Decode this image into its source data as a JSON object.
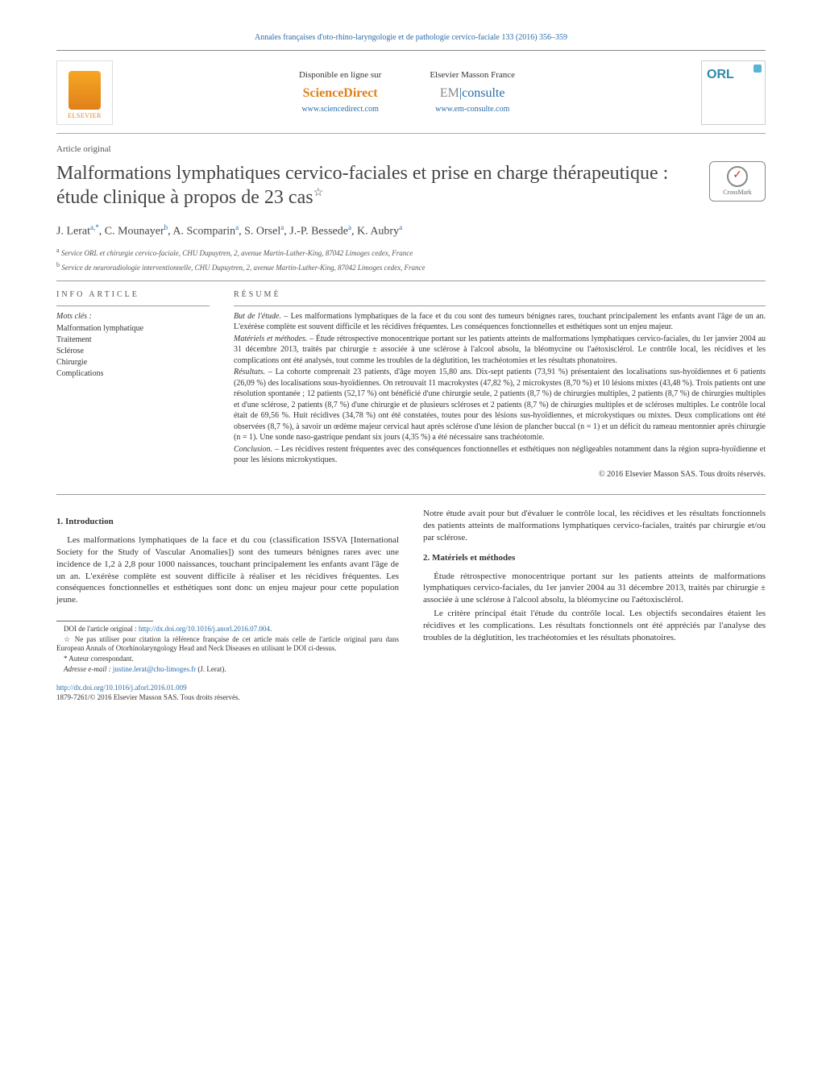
{
  "journal_header": "Annales françaises d'oto-rhino-laryngologie et de pathologie cervico-faciale 133 (2016) 356–359",
  "header": {
    "elsevier": "ELSEVIER",
    "dispo_label": "Disponible en ligne sur",
    "sciencedirect": "ScienceDirect",
    "sd_url": "www.sciencedirect.com",
    "masson_label": "Elsevier Masson France",
    "em_prefix": "EM",
    "em_suffix": "consulte",
    "em_url": "www.em-consulte.com",
    "journal_badge": "ORL"
  },
  "article_type": "Article original",
  "title": "Malformations lymphatiques cervico-faciales et prise en charge thérapeutique : étude clinique à propos de 23 cas",
  "title_star": "☆",
  "crossmark": "CrossMark",
  "authors_html": "J. Lerat<sup>a,*</sup>, C. Mounayer<sup>b</sup>, A. Scomparin<sup>a</sup>, S. Orsel<sup>a</sup>, J.-P. Bessede<sup>a</sup>, K. Aubry<sup>a</sup>",
  "affiliations": [
    "a Service ORL et chirurgie cervico-faciale, CHU Dupuytren, 2, avenue Martin-Luther-King, 87042 Limoges cedex, France",
    "b Service de neuroradiologie interventionnelle, CHU Dupuytren, 2, avenue Martin-Luther-King, 87042 Limoges cedex, France"
  ],
  "info": {
    "heading": "INFO ARTICLE",
    "keywords_label": "Mots clés :",
    "keywords": [
      "Malformation lymphatique",
      "Traitement",
      "Sclérose",
      "Chirurgie",
      "Complications"
    ]
  },
  "resume": {
    "heading": "RÉSUMÉ",
    "but_label": "But de l'étude. –",
    "but": "Les malformations lymphatiques de la face et du cou sont des tumeurs bénignes rares, touchant principalement les enfants avant l'âge de un an. L'exérèse complète est souvent difficile et les récidives fréquentes. Les conséquences fonctionnelles et esthétiques sont un enjeu majeur.",
    "mat_label": "Matériels et méthodes. –",
    "mat": "Étude rétrospective monocentrique portant sur les patients atteints de malformations lymphatiques cervico-faciales, du 1er janvier 2004 au 31 décembre 2013, traités par chirurgie ± associée à une sclérose à l'alcool absolu, la bléomycine ou l'aétoxisclérol. Le contrôle local, les récidives et les complications ont été analysés, tout comme les troubles de la déglutition, les trachéotomies et les résultats phonatoires.",
    "res_label": "Résultats. –",
    "res": "La cohorte comprenait 23 patients, d'âge moyen 15,80 ans. Dix-sept patients (73,91 %) présentaient des localisations sus-hyoïdiennes et 6 patients (26,09 %) des localisations sous-hyoïdiennes. On retrouvait 11 macrokystes (47,82 %), 2 microkystes (8,70 %) et 10 lésions mixtes (43,48 %). Trois patients ont une résolution spontanée ; 12 patients (52,17 %) ont bénéficié d'une chirurgie seule, 2 patients (8,7 %) de chirurgies multiples, 2 patients (8,7 %) de chirurgies multiples et d'une sclérose, 2 patients (8,7 %) d'une chirurgie et de plusieurs scléroses et 2 patients (8,7 %) de chirurgies multiples et de scléroses multiples. Le contrôle local était de 69,56 %. Huit récidives (34,78 %) ont été constatées, toutes pour des lésions sus-hyoïdiennes, et microkystiques ou mixtes. Deux complications ont été observées (8,7 %), à savoir un œdème majeur cervical haut après sclérose d'une lésion de plancher buccal (n = 1) et un déficit du rameau mentonnier après chirurgie (n = 1). Une sonde naso-gastrique pendant six jours (4,35 %) a été nécessaire sans trachéotomie.",
    "conc_label": "Conclusion. –",
    "conc": "Les récidives restent fréquentes avec des conséquences fonctionnelles et esthétiques non négligeables notamment dans la région supra-hyoïdienne et pour les lésions microkystiques.",
    "copyright": "© 2016 Elsevier Masson SAS. Tous droits réservés."
  },
  "sections": {
    "intro_heading": "1. Introduction",
    "intro_p1": "Les malformations lymphatiques de la face et du cou (classification ISSVA [International Society for the Study of Vascular Anomalies]) sont des tumeurs bénignes rares avec une incidence de 1,2 à 2,8 pour 1000 naissances, touchant principalement les enfants avant l'âge de un an. L'exérèse complète est souvent difficile à réaliser et les récidives fréquentes. Les conséquences fonctionnelles et esthétiques sont donc un enjeu majeur pour cette population jeune.",
    "intro_p2": "Notre étude avait pour but d'évaluer le contrôle local, les récidives et les résultats fonctionnels des patients atteints de malformations lymphatiques cervico-faciales, traités par chirurgie et/ou par sclérose.",
    "methods_heading": "2. Matériels et méthodes",
    "methods_p1": "Étude rétrospective monocentrique portant sur les patients atteints de malformations lymphatiques cervico-faciales, du 1er janvier 2004 au 31 décembre 2013, traités par chirurgie ± associée à une sclérose à l'alcool absolu, la bléomycine ou l'aétoxisclérol.",
    "methods_p2": "Le critère principal était l'étude du contrôle local. Les objectifs secondaires étaient les récidives et les complications. Les résultats fonctionnels ont été appréciés par l'analyse des troubles de la déglutition, les trachéotomies et les résultats phonatoires."
  },
  "footnotes": {
    "doi_original_label": "DOI de l'article original :",
    "doi_original": "http://dx.doi.org/10.1016/j.anorl.2016.07.004",
    "star_note": "☆ Ne pas utiliser pour citation la référence française de cet article mais celle de l'article original paru dans European Annals of Otorhinolaryngology Head and Neck Diseases en utilisant le DOI ci-dessus.",
    "corr_label": "* Auteur correspondant.",
    "email_label": "Adresse e-mail :",
    "email": "justine.lerat@chu-limoges.fr",
    "email_name": "(J. Lerat)."
  },
  "footer": {
    "doi": "http://dx.doi.org/10.1016/j.aforl.2016.01.009",
    "issn_line": "1879-7261/© 2016 Elsevier Masson SAS. Tous droits réservés."
  },
  "colors": {
    "link": "#2b6ca8",
    "elsevier_orange": "#e0801a",
    "text": "#333333",
    "rule": "#999999"
  }
}
